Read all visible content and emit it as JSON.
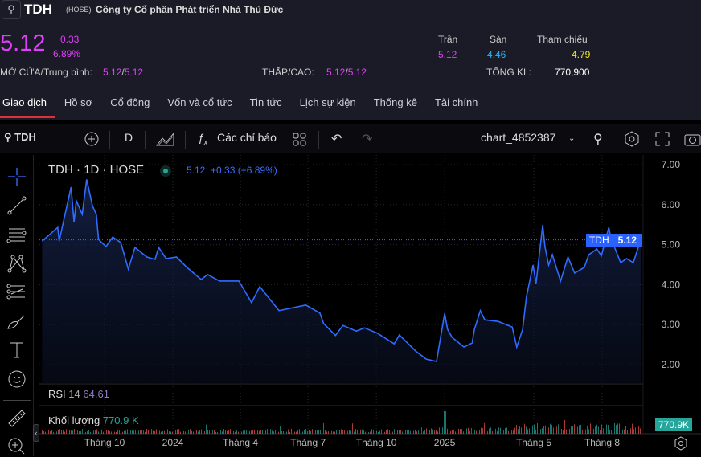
{
  "header": {
    "symbol": "TDH",
    "exchange": "(HOSE)",
    "company": "Công ty Cổ phần Phát triển Nhà Thủ Đức",
    "price": "5.12",
    "change": "0.33",
    "change_pct": "6.89%",
    "open_avg_label": "MỞ CỬA/Trung bình:",
    "open": "5.12",
    "avg": "5.12",
    "lowhigh_label": "THẤP/CAO:",
    "low": "5.12",
    "high": "5.12",
    "ceiling_label": "Trần",
    "ceiling": "5.12",
    "floor_label": "Sàn",
    "floor": "4.46",
    "ref_label": "Tham chiếu",
    "ref": "4.79",
    "volume_label": "TỔNG KL:",
    "volume": "770,900"
  },
  "tabs": [
    {
      "label": "Giao dịch",
      "active": true
    },
    {
      "label": "Hồ sơ"
    },
    {
      "label": "Cổ đông"
    },
    {
      "label": "Vốn và cổ tức"
    },
    {
      "label": "Tin tức"
    },
    {
      "label": "Lịch sự kiện"
    },
    {
      "label": "Thống kê"
    },
    {
      "label": "Tài chính"
    }
  ],
  "toolbar": {
    "symbol": "TDH",
    "interval": "D",
    "indicators": "Các chỉ báo",
    "layout_name": "chart_4852387"
  },
  "legend": {
    "title": "TDH · 1D · HOSE",
    "price": "5.12",
    "change": "+0.33 (+6.89%)"
  },
  "price_tag": {
    "symbol": "TDH",
    "value": "5.12"
  },
  "rsi": {
    "label": "RSI",
    "period": "14",
    "value": "64.61"
  },
  "volume_pane": {
    "label": "Khối lượng",
    "value": "770.9 K",
    "tag": "770.9K"
  },
  "colors": {
    "up": "#e040fb",
    "floor": "#29b6f6",
    "ref": "#f5e52c",
    "line": "#2f6bff",
    "vol_up": "#26a69a",
    "vol_down": "#ef5350"
  },
  "chart_data": {
    "type": "area",
    "y_ticks": [
      "7.00",
      "6.00",
      "5.00",
      "4.00",
      "3.00",
      "2.00"
    ],
    "ylim": [
      2,
      7
    ],
    "x_ticks": [
      {
        "label": "Tháng 10",
        "date": "2023-10-01"
      },
      {
        "label": "2024",
        "date": "2024-01-01"
      },
      {
        "label": "Tháng 4",
        "date": "2024-04-01"
      },
      {
        "label": "Tháng 7",
        "date": "2024-07-01"
      },
      {
        "label": "Tháng 10",
        "date": "2024-10-01"
      },
      {
        "label": "2025",
        "date": "2025-01-01"
      },
      {
        "label": "Tháng 5",
        "date": "2025-05-01"
      },
      {
        "label": "Tháng 8",
        "date": "2025-08-01"
      }
    ],
    "series": [
      {
        "points": [
          [
            "2023-07-09",
            5.09
          ],
          [
            "2023-07-30",
            5.43
          ],
          [
            "2023-08-01",
            5.09
          ],
          [
            "2023-08-17",
            6.44
          ],
          [
            "2023-08-21",
            5.56
          ],
          [
            "2023-08-24",
            6.1
          ],
          [
            "2023-09-01",
            5.76
          ],
          [
            "2023-09-07",
            6.63
          ],
          [
            "2023-09-15",
            5.96
          ],
          [
            "2023-09-20",
            5.76
          ],
          [
            "2023-09-23",
            5.13
          ],
          [
            "2023-10-03",
            4.95
          ],
          [
            "2023-10-12",
            5.19
          ],
          [
            "2023-10-23",
            5.05
          ],
          [
            "2023-11-02",
            4.39
          ],
          [
            "2023-11-11",
            4.93
          ],
          [
            "2023-11-27",
            4.69
          ],
          [
            "2023-12-08",
            4.63
          ],
          [
            "2023-12-13",
            4.93
          ],
          [
            "2023-12-23",
            4.65
          ],
          [
            "2024-01-06",
            4.69
          ],
          [
            "2024-01-20",
            4.43
          ],
          [
            "2024-02-08",
            4.13
          ],
          [
            "2024-02-17",
            4.25
          ],
          [
            "2024-03-04",
            4.09
          ],
          [
            "2024-03-30",
            4.09
          ],
          [
            "2024-04-16",
            3.55
          ],
          [
            "2024-04-27",
            3.95
          ],
          [
            "2024-05-23",
            3.35
          ],
          [
            "2024-06-28",
            3.49
          ],
          [
            "2024-07-17",
            3.29
          ],
          [
            "2024-07-22",
            3.03
          ],
          [
            "2024-08-07",
            2.73
          ],
          [
            "2024-08-17",
            2.98
          ],
          [
            "2024-09-04",
            2.84
          ],
          [
            "2024-09-15",
            2.92
          ],
          [
            "2024-10-03",
            2.78
          ],
          [
            "2024-10-25",
            2.52
          ],
          [
            "2024-11-01",
            2.74
          ],
          [
            "2024-11-23",
            2.34
          ],
          [
            "2024-12-07",
            2.14
          ],
          [
            "2024-12-21",
            2.08
          ],
          [
            "2025-01-01",
            3.28
          ],
          [
            "2025-01-05",
            2.88
          ],
          [
            "2025-01-11",
            2.68
          ],
          [
            "2025-01-27",
            2.44
          ],
          [
            "2025-02-07",
            2.54
          ],
          [
            "2025-02-10",
            2.88
          ],
          [
            "2025-02-18",
            3.35
          ],
          [
            "2025-02-24",
            3.12
          ],
          [
            "2025-03-14",
            3.08
          ],
          [
            "2025-04-02",
            2.94
          ],
          [
            "2025-04-08",
            2.44
          ],
          [
            "2025-04-16",
            2.88
          ],
          [
            "2025-04-21",
            3.69
          ],
          [
            "2025-04-30",
            4.49
          ],
          [
            "2025-05-04",
            4.03
          ],
          [
            "2025-05-13",
            5.49
          ],
          [
            "2025-05-16",
            4.95
          ],
          [
            "2025-05-21",
            4.49
          ],
          [
            "2025-05-26",
            4.75
          ],
          [
            "2025-06-06",
            4.09
          ],
          [
            "2025-06-16",
            4.69
          ],
          [
            "2025-06-25",
            4.29
          ],
          [
            "2025-07-08",
            4.43
          ],
          [
            "2025-07-14",
            4.75
          ],
          [
            "2025-07-25",
            4.89
          ],
          [
            "2025-07-31",
            4.72
          ],
          [
            "2025-08-10",
            5.43
          ],
          [
            "2025-08-13",
            5.15
          ],
          [
            "2025-08-26",
            4.55
          ],
          [
            "2025-09-03",
            4.65
          ],
          [
            "2025-09-12",
            4.55
          ],
          [
            "2025-09-18",
            4.89
          ],
          [
            "2025-09-22",
            5.12
          ]
        ]
      }
    ]
  }
}
